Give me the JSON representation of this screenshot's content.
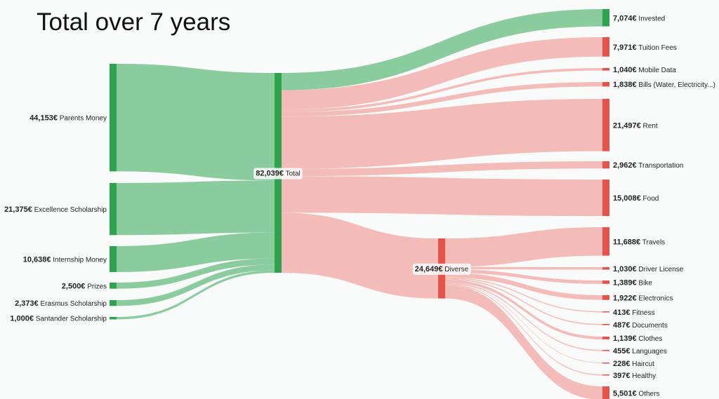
{
  "chart_data": {
    "type": "sankey",
    "title": "Total over 7 years",
    "currency": "€",
    "colors": {
      "income_node": "#2ea44f",
      "income_link": "#8acc9e",
      "expense_node": "#e5534b",
      "expense_link": "#f4bcb8"
    },
    "nodes": [
      {
        "name": "Parents Money",
        "value": 44153,
        "kind": "income"
      },
      {
        "name": "Excellence Scholarship",
        "value": 21375,
        "kind": "income"
      },
      {
        "name": "Internship Money",
        "value": 10638,
        "kind": "income"
      },
      {
        "name": "Prizes",
        "value": 2500,
        "kind": "income"
      },
      {
        "name": "Erasmus Scholarship",
        "value": 2373,
        "kind": "income"
      },
      {
        "name": "Santander Scholarship",
        "value": 1000,
        "kind": "income"
      },
      {
        "name": "Total",
        "value": 82039,
        "kind": "income"
      },
      {
        "name": "Invested",
        "value": 7074,
        "kind": "income"
      },
      {
        "name": "Tuition Fees",
        "value": 7971,
        "kind": "expense"
      },
      {
        "name": "Mobile Data",
        "value": 1040,
        "kind": "expense"
      },
      {
        "name": "Bills (Water, Electricity...)",
        "value": 1838,
        "kind": "expense"
      },
      {
        "name": "Rent",
        "value": 21497,
        "kind": "expense"
      },
      {
        "name": "Transportation",
        "value": 2962,
        "kind": "expense"
      },
      {
        "name": "Food",
        "value": 15008,
        "kind": "expense"
      },
      {
        "name": "Diverse",
        "value": 24649,
        "kind": "expense"
      },
      {
        "name": "Travels",
        "value": 11688,
        "kind": "expense"
      },
      {
        "name": "Driver License",
        "value": 1030,
        "kind": "expense"
      },
      {
        "name": "Bike",
        "value": 1389,
        "kind": "expense"
      },
      {
        "name": "Electronics",
        "value": 1922,
        "kind": "expense"
      },
      {
        "name": "Fitness",
        "value": 413,
        "kind": "expense"
      },
      {
        "name": "Documents",
        "value": 487,
        "kind": "expense"
      },
      {
        "name": "Clothes",
        "value": 1139,
        "kind": "expense"
      },
      {
        "name": "Languages",
        "value": 455,
        "kind": "expense"
      },
      {
        "name": "Haircut",
        "value": 228,
        "kind": "expense"
      },
      {
        "name": "Healthy",
        "value": 397,
        "kind": "expense"
      },
      {
        "name": "Others",
        "value": 5501,
        "kind": "expense"
      }
    ],
    "links": [
      {
        "source": "Parents Money",
        "target": "Total",
        "value": 44153
      },
      {
        "source": "Excellence Scholarship",
        "target": "Total",
        "value": 21375
      },
      {
        "source": "Internship Money",
        "target": "Total",
        "value": 10638
      },
      {
        "source": "Prizes",
        "target": "Total",
        "value": 2500
      },
      {
        "source": "Erasmus Scholarship",
        "target": "Total",
        "value": 2373
      },
      {
        "source": "Santander Scholarship",
        "target": "Total",
        "value": 1000
      },
      {
        "source": "Total",
        "target": "Invested",
        "value": 7074
      },
      {
        "source": "Total",
        "target": "Tuition Fees",
        "value": 7971
      },
      {
        "source": "Total",
        "target": "Mobile Data",
        "value": 1040
      },
      {
        "source": "Total",
        "target": "Bills (Water, Electricity...)",
        "value": 1838
      },
      {
        "source": "Total",
        "target": "Rent",
        "value": 21497
      },
      {
        "source": "Total",
        "target": "Transportation",
        "value": 2962
      },
      {
        "source": "Total",
        "target": "Food",
        "value": 15008
      },
      {
        "source": "Total",
        "target": "Diverse",
        "value": 24649
      },
      {
        "source": "Diverse",
        "target": "Travels",
        "value": 11688
      },
      {
        "source": "Diverse",
        "target": "Driver License",
        "value": 1030
      },
      {
        "source": "Diverse",
        "target": "Bike",
        "value": 1389
      },
      {
        "source": "Diverse",
        "target": "Electronics",
        "value": 1922
      },
      {
        "source": "Diverse",
        "target": "Fitness",
        "value": 413
      },
      {
        "source": "Diverse",
        "target": "Documents",
        "value": 487
      },
      {
        "source": "Diverse",
        "target": "Clothes",
        "value": 1139
      },
      {
        "source": "Diverse",
        "target": "Languages",
        "value": 455
      },
      {
        "source": "Diverse",
        "target": "Haircut",
        "value": 228
      },
      {
        "source": "Diverse",
        "target": "Healthy",
        "value": 397
      },
      {
        "source": "Diverse",
        "target": "Others",
        "value": 5501
      }
    ]
  }
}
